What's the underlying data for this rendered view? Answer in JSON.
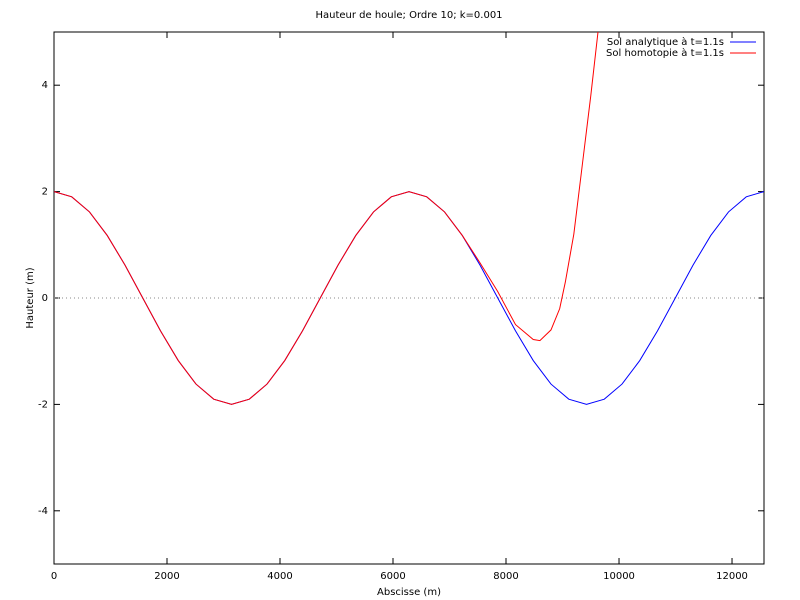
{
  "chart_data": {
    "type": "line",
    "title": "Hauteur de houle; Ordre 10; k=0.001",
    "x_label": "Abscisse (m)",
    "y_label": "Hauteur (m)",
    "xlim": [
      0,
      12566
    ],
    "ylim": [
      -5,
      5
    ],
    "xticks": [
      0,
      2000,
      4000,
      6000,
      8000,
      10000,
      12000
    ],
    "yticks": [
      -4,
      -2,
      0,
      2,
      4
    ],
    "zero_axis": true,
    "legend": "top-right",
    "series": [
      {
        "name": "Sol analytique à t=1.1s",
        "color": "#0000ff",
        "x": [
          0,
          314,
          628,
          942,
          1257,
          1571,
          1885,
          2199,
          2513,
          2827,
          3142,
          3456,
          3770,
          4084,
          4398,
          4712,
          5027,
          5341,
          5655,
          5969,
          6283,
          6597,
          6912,
          7226,
          7540,
          7854,
          8168,
          8482,
          8796,
          9111,
          9425,
          9739,
          10053,
          10367,
          10681,
          10996,
          11310,
          11624,
          11938,
          12252,
          12566
        ],
        "values": [
          2,
          1.902,
          1.618,
          1.176,
          0.618,
          0,
          -0.618,
          -1.176,
          -1.618,
          -1.902,
          -2,
          -1.902,
          -1.618,
          -1.176,
          -0.618,
          0,
          0.618,
          1.176,
          1.618,
          1.902,
          2,
          1.902,
          1.618,
          1.176,
          0.618,
          0,
          -0.618,
          -1.176,
          -1.618,
          -1.902,
          -2,
          -1.902,
          -1.618,
          -1.176,
          -0.618,
          0,
          0.618,
          1.176,
          1.618,
          1.902,
          2
        ]
      },
      {
        "name": "Sol homotopie à t=1.1s",
        "color": "#ff0000",
        "x": [
          0,
          314,
          628,
          942,
          1257,
          1571,
          1885,
          2199,
          2513,
          2827,
          3142,
          3456,
          3770,
          4084,
          4398,
          4712,
          5027,
          5341,
          5655,
          5969,
          6283,
          6597,
          6912,
          7226,
          7540,
          7854,
          8168,
          8482,
          8600,
          8796,
          8950,
          9050,
          9200,
          9350,
          9500,
          9628
        ],
        "values": [
          2,
          1.902,
          1.618,
          1.176,
          0.618,
          0,
          -0.618,
          -1.176,
          -1.618,
          -1.902,
          -2,
          -1.902,
          -1.618,
          -1.176,
          -0.618,
          0,
          0.618,
          1.176,
          1.618,
          1.902,
          2,
          1.902,
          1.618,
          1.176,
          0.66,
          0.12,
          -0.5,
          -0.78,
          -0.8,
          -0.6,
          -0.2,
          0.3,
          1.2,
          2.5,
          3.8,
          5
        ]
      }
    ]
  }
}
